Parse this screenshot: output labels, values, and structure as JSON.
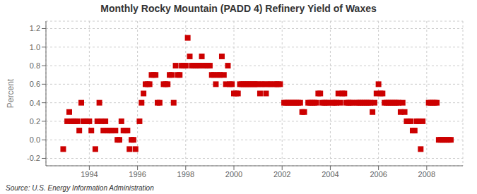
{
  "chart_data": {
    "type": "scatter",
    "title": "Monthly Rocky Mountain (PADD 4) Refinery Yield of Waxes",
    "ylabel": "Percent",
    "annotation": "Source: U.S. Energy Information Administration",
    "xlim": [
      1992.2,
      2009.5
    ],
    "ylim": [
      -0.28,
      1.28
    ],
    "xticks": [
      1994,
      1996,
      1998,
      2000,
      2002,
      2004,
      2006,
      2008
    ],
    "yticks": [
      -0.2,
      {
        "value": 0.0,
        "label": "0.0"
      },
      0.2,
      0.4,
      0.6,
      0.8,
      {
        "value": 1.0,
        "label": "1.0"
      },
      1.2
    ],
    "grid": true,
    "color": "#cc0000",
    "marker": "square",
    "x": [
      1992.917,
      1993.083,
      1993.167,
      1993.25,
      1993.333,
      1993.417,
      1993.5,
      1993.583,
      1993.667,
      1993.75,
      1993.833,
      1993.917,
      1994.0,
      1994.083,
      1994.25,
      1994.333,
      1994.417,
      1994.5,
      1994.583,
      1994.667,
      1994.75,
      1994.833,
      1994.917,
      1995.083,
      1995.167,
      1995.25,
      1995.333,
      1995.417,
      1995.5,
      1995.583,
      1995.667,
      1995.75,
      1995.833,
      1995.917,
      1996.083,
      1996.167,
      1996.25,
      1996.333,
      1996.417,
      1996.5,
      1996.583,
      1996.667,
      1996.75,
      1996.833,
      1996.917,
      1997.083,
      1997.167,
      1997.25,
      1997.333,
      1997.417,
      1997.5,
      1997.583,
      1997.667,
      1997.75,
      1997.833,
      1997.917,
      1998.0,
      1998.083,
      1998.167,
      1998.25,
      1998.333,
      1998.417,
      1998.5,
      1998.583,
      1998.667,
      1998.75,
      1998.833,
      1998.917,
      1999.0,
      1999.083,
      1999.167,
      1999.25,
      1999.333,
      1999.417,
      1999.5,
      1999.583,
      1999.667,
      1999.75,
      1999.833,
      1999.917,
      2000.0,
      2000.083,
      2000.167,
      2000.25,
      2000.333,
      2000.417,
      2000.5,
      2000.583,
      2000.667,
      2000.75,
      2000.833,
      2000.917,
      2001.0,
      2001.083,
      2001.167,
      2001.25,
      2001.333,
      2001.417,
      2001.5,
      2001.667,
      2001.75,
      2001.833,
      2001.917,
      2002.083,
      2002.167,
      2002.25,
      2002.333,
      2002.417,
      2002.5,
      2002.583,
      2002.667,
      2002.75,
      2002.833,
      2002.917,
      2003.083,
      2003.167,
      2003.25,
      2003.333,
      2003.417,
      2003.5,
      2003.583,
      2003.667,
      2003.75,
      2003.833,
      2003.917,
      2004.083,
      2004.167,
      2004.25,
      2004.333,
      2004.417,
      2004.5,
      2004.583,
      2004.667,
      2004.75,
      2004.833,
      2004.917,
      2005.083,
      2005.167,
      2005.25,
      2005.333,
      2005.417,
      2005.5,
      2005.583,
      2005.667,
      2005.75,
      2005.833,
      2005.917,
      2006.0,
      2006.083,
      2006.167,
      2006.25,
      2006.333,
      2006.417,
      2006.5,
      2006.583,
      2006.667,
      2006.75,
      2006.833,
      2006.917,
      2007.0,
      2007.083,
      2007.167,
      2007.25,
      2007.333,
      2007.417,
      2007.5,
      2007.583,
      2007.667,
      2007.75,
      2007.833,
      2008.083,
      2008.167,
      2008.25,
      2008.333,
      2008.417,
      2008.5,
      2008.583,
      2008.667,
      2008.75,
      2008.833,
      2008.917,
      2009.0
    ],
    "values": [
      -0.1,
      0.2,
      0.3,
      0.2,
      0.2,
      0.2,
      0.2,
      0.1,
      0.4,
      0.2,
      0.2,
      0.2,
      0.2,
      0.1,
      -0.1,
      0.2,
      0.4,
      0.2,
      0.1,
      0.2,
      0.1,
      0.1,
      0.1,
      0.1,
      0.0,
      0.0,
      0.2,
      0.1,
      0.1,
      0.1,
      -0.1,
      0.0,
      0.0,
      -0.1,
      0.2,
      0.4,
      0.5,
      0.6,
      0.6,
      0.6,
      0.7,
      0.7,
      0.7,
      0.4,
      0.4,
      0.6,
      0.6,
      0.6,
      0.7,
      0.7,
      0.4,
      0.8,
      0.7,
      0.7,
      0.8,
      0.8,
      0.8,
      1.1,
      0.9,
      0.8,
      0.8,
      0.8,
      0.8,
      0.8,
      0.9,
      0.8,
      0.8,
      0.8,
      0.8,
      0.7,
      0.7,
      0.6,
      0.7,
      0.7,
      0.9,
      0.7,
      0.6,
      0.8,
      0.6,
      0.6,
      0.5,
      0.5,
      0.5,
      0.6,
      0.6,
      0.6,
      0.6,
      0.6,
      0.6,
      0.6,
      0.6,
      0.6,
      0.6,
      0.5,
      0.6,
      0.6,
      0.5,
      0.6,
      0.6,
      0.6,
      0.6,
      0.6,
      0.6,
      0.4,
      0.4,
      0.4,
      0.4,
      0.4,
      0.4,
      0.4,
      0.4,
      0.4,
      0.3,
      0.3,
      0.4,
      0.4,
      0.4,
      0.4,
      0.4,
      0.5,
      0.5,
      0.4,
      0.4,
      0.4,
      0.4,
      0.4,
      0.4,
      0.4,
      0.5,
      0.4,
      0.5,
      0.5,
      0.4,
      0.4,
      0.4,
      0.4,
      0.4,
      0.4,
      0.4,
      0.4,
      0.4,
      0.4,
      0.4,
      0.4,
      0.3,
      0.4,
      0.5,
      0.6,
      0.5,
      0.5,
      0.4,
      0.4,
      0.4,
      0.4,
      0.4,
      0.4,
      0.4,
      0.4,
      0.3,
      0.4,
      0.3,
      0.2,
      0.2,
      0.2,
      0.1,
      0.1,
      0.2,
      0.2,
      -0.1,
      0.2,
      0.4,
      0.4,
      0.4,
      0.4,
      0.4,
      0.0,
      0.0,
      0.0,
      0.0,
      0.0,
      0.0,
      0.0
    ]
  }
}
